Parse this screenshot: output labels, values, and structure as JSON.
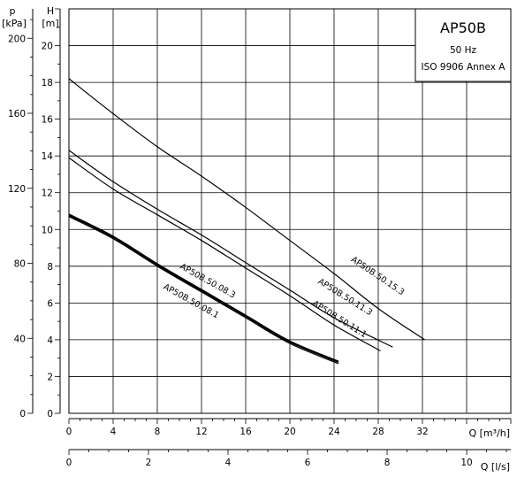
{
  "chart_data": {
    "type": "line",
    "title": "AP50B",
    "subtitle_lines": [
      "50 Hz",
      "ISO 9906 Annex A"
    ],
    "xlabel": "Q [m³/h]",
    "ylabel": "H [m]",
    "x2label": "Q [l/s]",
    "y2label": "p [kPa]",
    "y_axis_head": {
      "letter": "H",
      "unit": "[m]"
    },
    "y_axis_pressure": {
      "letter": "p",
      "unit": "[kPa]"
    },
    "xlim": [
      0,
      40
    ],
    "ylim": [
      0,
      22
    ],
    "x2lim": [
      0,
      11.11
    ],
    "y2lim": [
      0,
      215.7
    ],
    "x_ticks": [
      0,
      4,
      8,
      12,
      16,
      20,
      24,
      28,
      32
    ],
    "x_tick_labels": [
      "0",
      "4",
      "8",
      "12",
      "16",
      "20",
      "24",
      "28",
      "32"
    ],
    "x2_ticks": [
      0,
      2,
      4,
      6,
      8,
      10
    ],
    "x2_tick_labels": [
      "0",
      "2",
      "4",
      "6",
      "8",
      "10"
    ],
    "y_ticks": [
      0,
      2,
      4,
      6,
      8,
      10,
      12,
      14,
      16,
      18,
      20
    ],
    "y_tick_labels": [
      "0",
      "2",
      "4",
      "6",
      "8",
      "10",
      "12",
      "14",
      "16",
      "18",
      "20"
    ],
    "y2_ticks": [
      0,
      40,
      80,
      120,
      160,
      200
    ],
    "y2_tick_labels": [
      "0",
      "40",
      "80",
      "120",
      "160",
      "200"
    ],
    "grid": true,
    "series": [
      {
        "name": "AP50B.50.15.3",
        "x": [
          0,
          4,
          8,
          12,
          16,
          20,
          24,
          28,
          32.2
        ],
        "y": [
          18.2,
          16.3,
          14.5,
          12.9,
          11.2,
          9.4,
          7.6,
          5.7,
          4.0
        ]
      },
      {
        "name": "AP50B.50.11.3",
        "x": [
          0,
          4,
          8,
          12,
          16,
          20,
          24,
          29.3
        ],
        "y": [
          14.3,
          12.6,
          11.1,
          9.7,
          8.2,
          6.7,
          5.2,
          3.6
        ]
      },
      {
        "name": "AP50B.50.11.1",
        "x": [
          0,
          4,
          8,
          12,
          16,
          20,
          24,
          28.2
        ],
        "y": [
          13.9,
          12.2,
          10.8,
          9.4,
          7.9,
          6.4,
          4.8,
          3.4
        ]
      },
      {
        "name": "AP50B.50.08.3",
        "x": [
          0,
          4,
          8,
          12,
          16,
          20,
          24.4
        ],
        "y": [
          10.8,
          9.6,
          8.1,
          6.7,
          5.3,
          3.9,
          2.8
        ]
      },
      {
        "name": "AP50B.50.08.1",
        "x": [
          0,
          4,
          8,
          12,
          16,
          20,
          24.4
        ],
        "y": [
          10.7,
          9.5,
          8.0,
          6.6,
          5.2,
          3.8,
          2.7
        ]
      }
    ],
    "curve_labels": [
      {
        "text": "AP50B.50.15.3",
        "x": 25.5,
        "y": 8.3,
        "angle": 34
      },
      {
        "text": "AP50B.50.11.3",
        "x": 22.5,
        "y": 7.1,
        "angle": 32
      },
      {
        "text": "AP50B.50.11.1",
        "x": 22.0,
        "y": 5.9,
        "angle": 32
      },
      {
        "text": "AP50B.50.08.3",
        "x": 10.0,
        "y": 7.9,
        "angle": 29
      },
      {
        "text": "AP50B.50.08.1",
        "x": 8.5,
        "y": 6.8,
        "angle": 29
      }
    ]
  }
}
